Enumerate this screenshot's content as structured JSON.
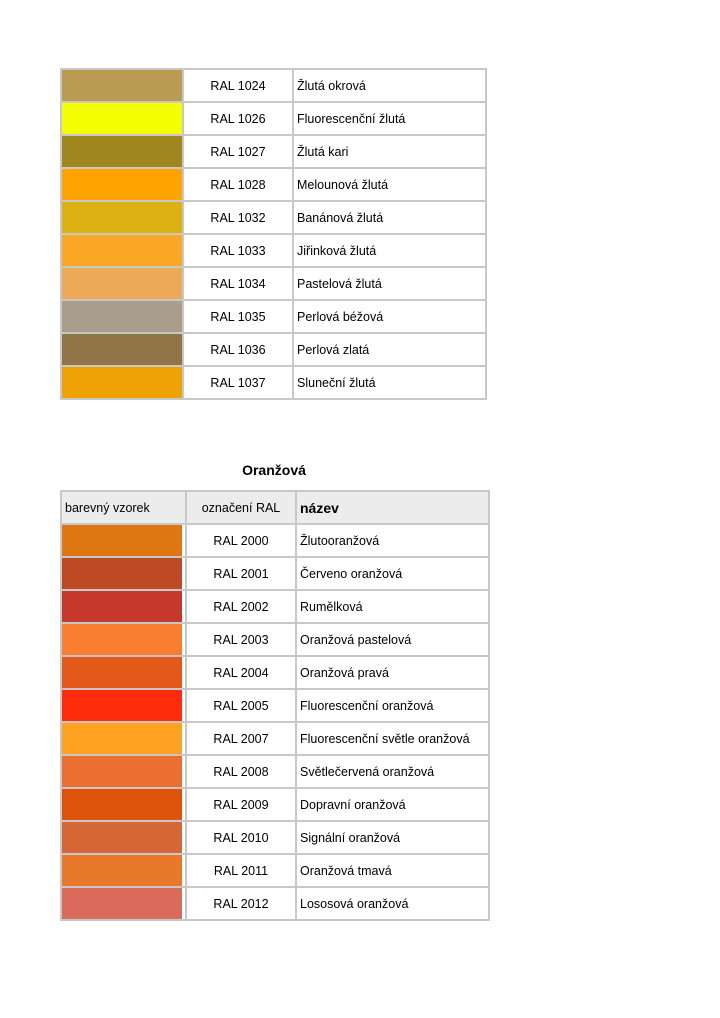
{
  "yellow_table": {
    "rows": [
      {
        "color": "#b99b52",
        "code": "RAL 1024",
        "name": "Žlutá okrová"
      },
      {
        "color": "#f4ff00",
        "code": "RAL 1026",
        "name": "Fluorescenční žlutá"
      },
      {
        "color": "#a0861f",
        "code": "RAL 1027",
        "name": "Žlutá kari"
      },
      {
        "color": "#ffa300",
        "code": "RAL 1028",
        "name": "Melounová žlutá"
      },
      {
        "color": "#ddb113",
        "code": "RAL 1032",
        "name": "Banánová žlutá"
      },
      {
        "color": "#f9a725",
        "code": "RAL 1033",
        "name": "Jiřinková žlutá"
      },
      {
        "color": "#eda955",
        "code": "RAL 1034",
        "name": "Pastelová žlutá"
      },
      {
        "color": "#a89e8b",
        "code": "RAL 1035",
        "name": "Perlová béžová"
      },
      {
        "color": "#907547",
        "code": "RAL 1036",
        "name": "Perlová zlatá"
      },
      {
        "color": "#eea205",
        "code": "RAL 1037",
        "name": "Sluneční žlutá"
      }
    ]
  },
  "orange_section": {
    "title": "Oranžová",
    "header": {
      "swatch": "barevný vzorek",
      "code": "označení RAL",
      "name": "název"
    },
    "rows": [
      {
        "color": "#de7711",
        "code": "RAL 2000",
        "name": "Žlutooranžová"
      },
      {
        "color": "#bd4a22",
        "code": "RAL 2001",
        "name": "Červeno oranžová"
      },
      {
        "color": "#c6382b",
        "code": "RAL 2002",
        "name": "Rumělková"
      },
      {
        "color": "#fb7d2f",
        "code": "RAL 2003",
        "name": "Oranžová pastelová"
      },
      {
        "color": "#e4581a",
        "code": "RAL 2004",
        "name": "Oranžová pravá"
      },
      {
        "color": "#ff2b0b",
        "code": "RAL 2005",
        "name": "Fluorescenční oranžová"
      },
      {
        "color": "#ffa21f",
        "code": "RAL 2007",
        "name": "Fluorescenční světle oranžová"
      },
      {
        "color": "#ec6f32",
        "code": "RAL 2008",
        "name": "Světlečervená oranžová"
      },
      {
        "color": "#df5209",
        "code": "RAL 2009",
        "name": "Dopravní oranžová"
      },
      {
        "color": "#d46735",
        "code": "RAL 2010",
        "name": "Signální oranžová"
      },
      {
        "color": "#e8792a",
        "code": "RAL 2011",
        "name": "Oranžová tmavá"
      },
      {
        "color": "#da6a59",
        "code": "RAL 2012",
        "name": "Lososová oranžová"
      }
    ]
  }
}
